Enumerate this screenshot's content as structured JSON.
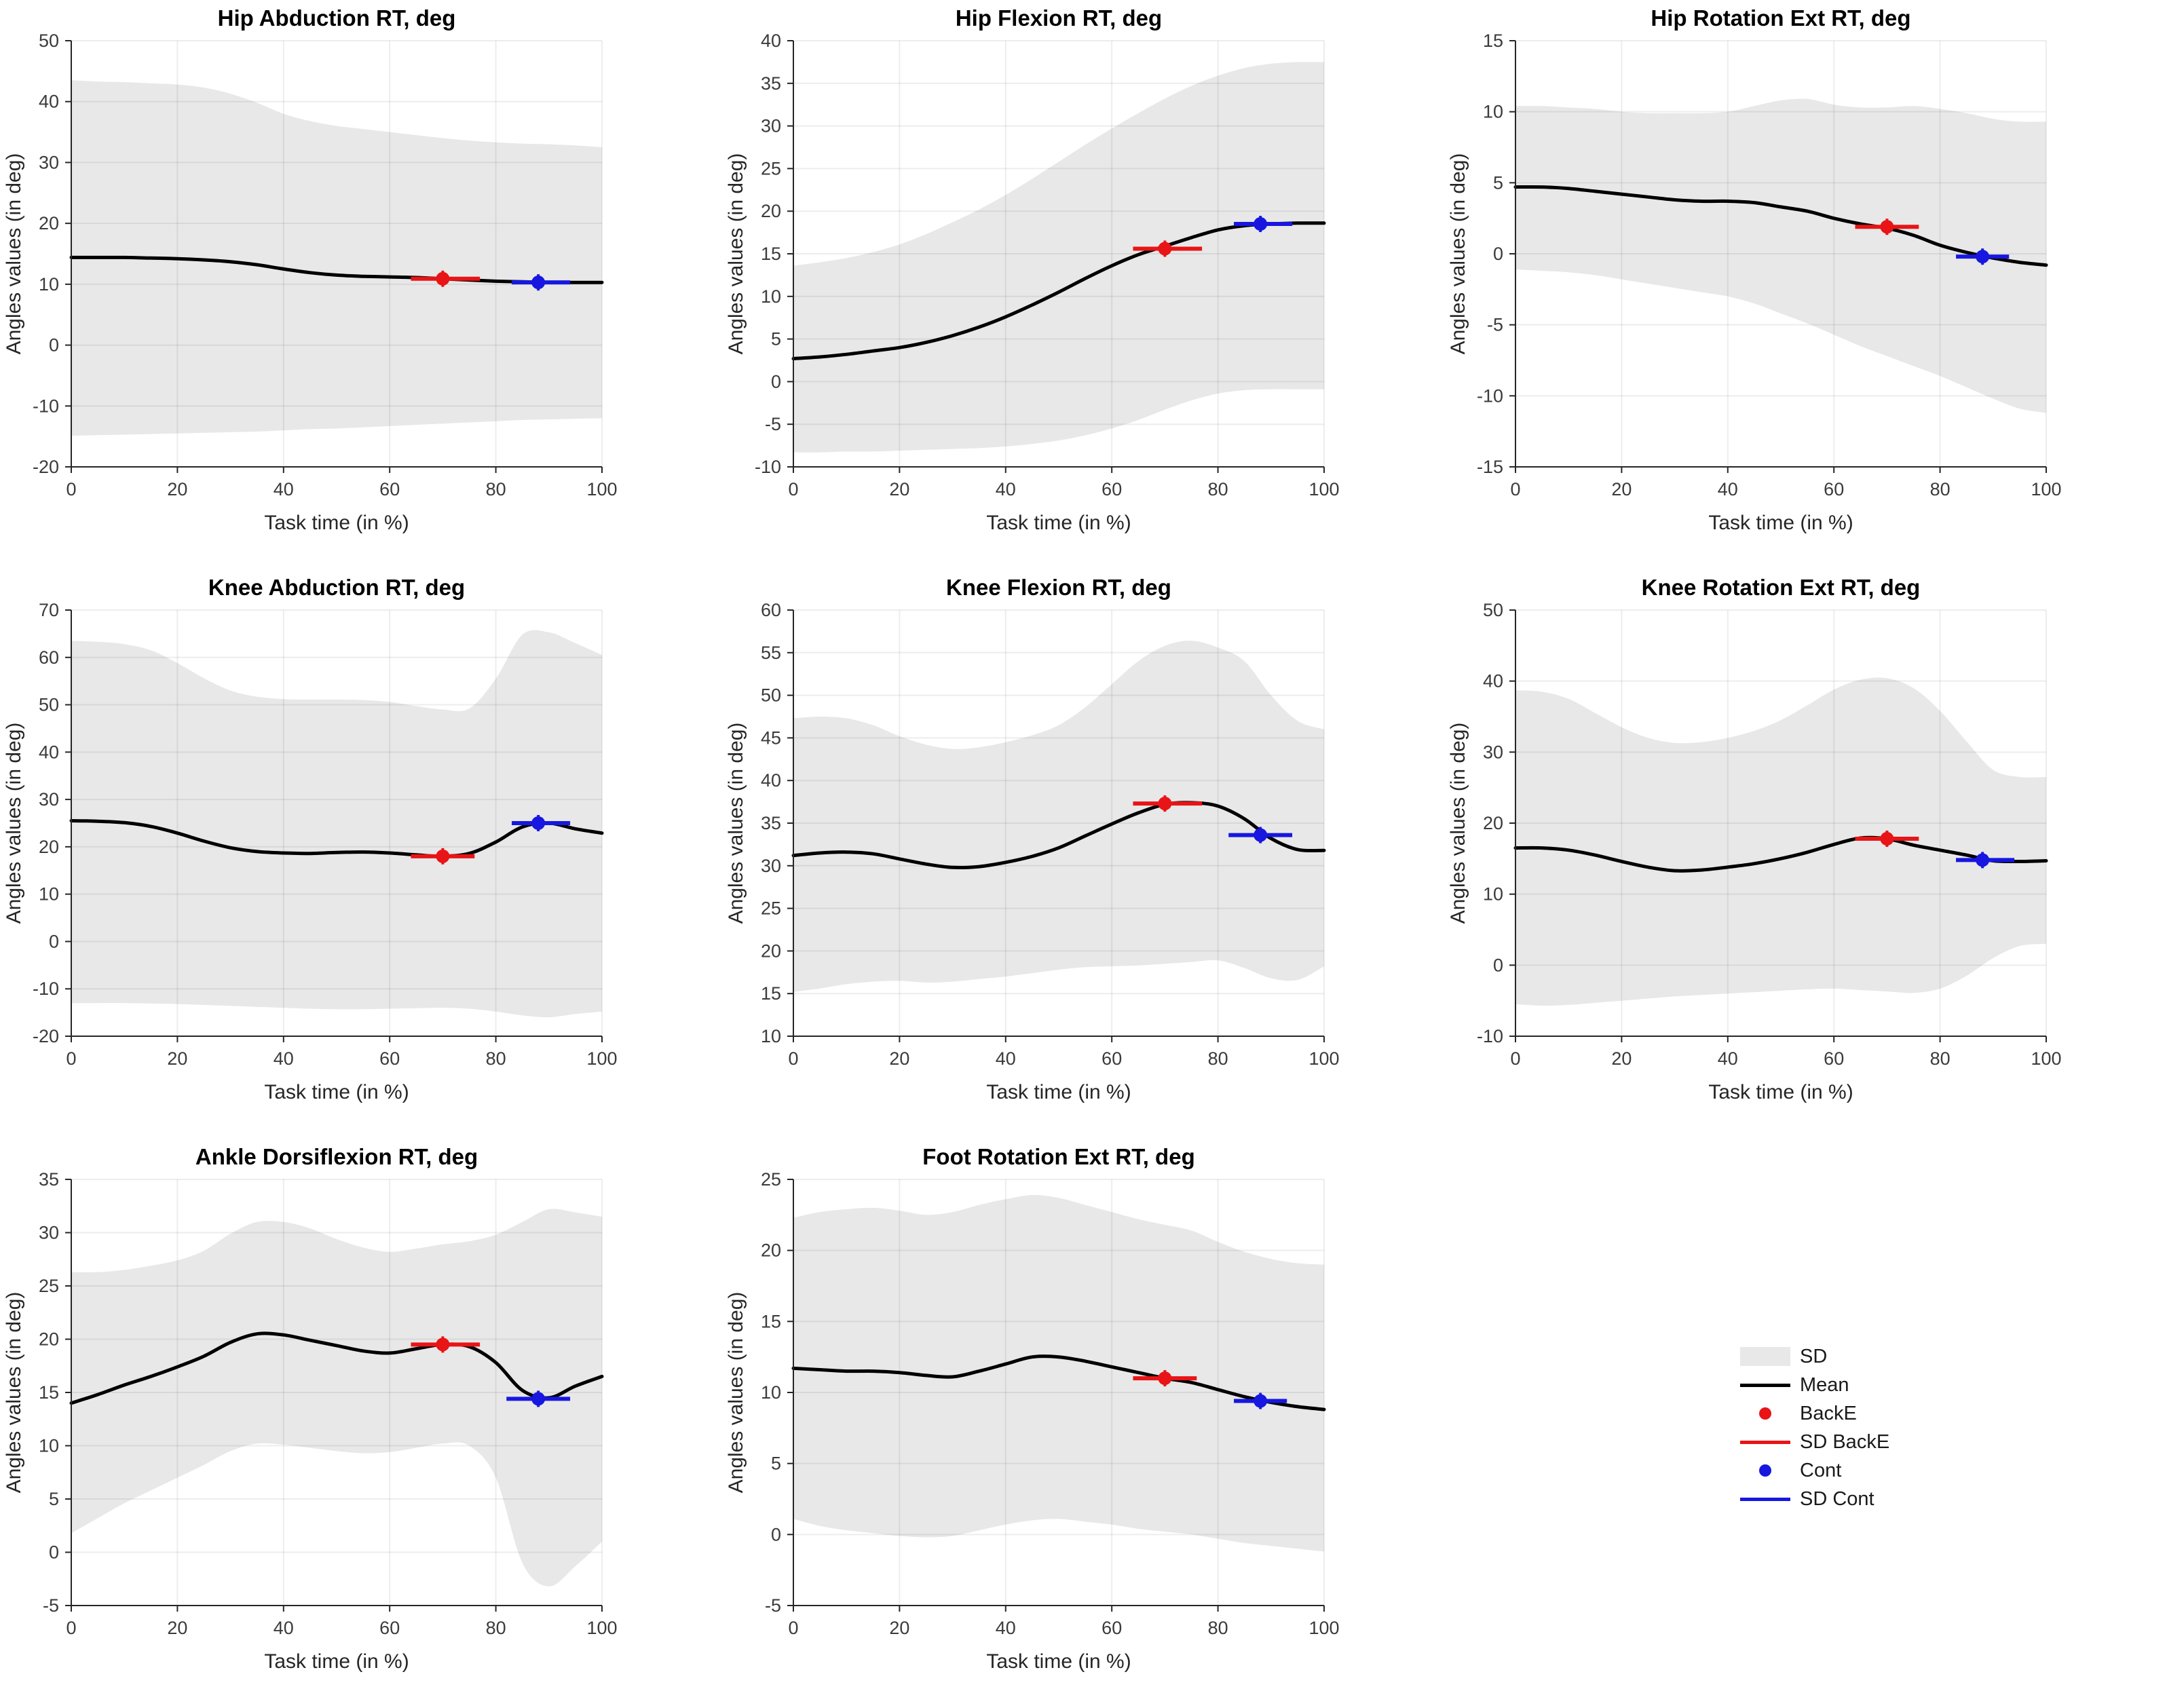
{
  "page": {
    "background": "#ffffff"
  },
  "colors": {
    "sd_band": "#e8e8e8",
    "mean": "#000000",
    "backe": "#e81416",
    "cont": "#1717e0",
    "grid": "rgba(0,0,0,0.07)",
    "axis": "#262626",
    "tick_label": "#3b3b3b",
    "title": "#000000"
  },
  "labels": {
    "xlabel": "Task time (in %)",
    "ylabel": "Angles values (in deg)"
  },
  "legend": {
    "items": [
      {
        "label": "SD",
        "type": "band"
      },
      {
        "label": "Mean",
        "type": "line-black"
      },
      {
        "label": "BackE",
        "type": "dot-red"
      },
      {
        "label": "SD BackE",
        "type": "line-red"
      },
      {
        "label": "Cont",
        "type": "dot-blue"
      },
      {
        "label": "SD Cont",
        "type": "line-blue"
      }
    ]
  },
  "chart_data": [
    {
      "type": "line",
      "title": "Hip Abduction RT, deg",
      "xlabel": "Task time (in %)",
      "ylabel": "Angles values (in deg)",
      "xlim": [
        0,
        100
      ],
      "xticks": [
        0,
        20,
        40,
        60,
        80,
        100
      ],
      "ylim": [
        -20,
        50
      ],
      "yticks": [
        -20,
        -10,
        0,
        10,
        20,
        30,
        40,
        50
      ],
      "x_start": 0,
      "x_step": 5,
      "mean": [
        14.4,
        14.4,
        14.4,
        14.3,
        14.2,
        14.0,
        13.7,
        13.2,
        12.5,
        11.9,
        11.5,
        11.3,
        11.2,
        11.1,
        10.9,
        10.7,
        10.5,
        10.4,
        10.3,
        10.3,
        10.3
      ],
      "sd_upper": [
        43.5,
        43.3,
        43.2,
        43.0,
        42.8,
        42.3,
        41.3,
        39.8,
        38.0,
        36.8,
        36.0,
        35.5,
        35.0,
        34.5,
        34.0,
        33.6,
        33.3,
        33.1,
        33.0,
        32.8,
        32.5
      ],
      "sd_lower": [
        -14.9,
        -14.8,
        -14.7,
        -14.6,
        -14.5,
        -14.4,
        -14.3,
        -14.2,
        -14.0,
        -13.8,
        -13.7,
        -13.5,
        -13.3,
        -13.1,
        -12.9,
        -12.7,
        -12.5,
        -12.3,
        -12.2,
        -12.1,
        -12.0
      ],
      "backe": {
        "x": 70,
        "y": 10.9,
        "x_lo": 64,
        "x_hi": 77
      },
      "cont": {
        "x": 88,
        "y": 10.3,
        "x_lo": 83,
        "x_hi": 94
      }
    },
    {
      "type": "line",
      "title": "Hip Flexion RT, deg",
      "xlabel": "Task time (in %)",
      "ylabel": "Angles values (in deg)",
      "xlim": [
        0,
        100
      ],
      "xticks": [
        0,
        20,
        40,
        60,
        80,
        100
      ],
      "ylim": [
        -10,
        40
      ],
      "yticks": [
        -10,
        -5,
        0,
        5,
        10,
        15,
        20,
        25,
        30,
        35,
        40
      ],
      "x_start": 0,
      "x_step": 5,
      "mean": [
        2.7,
        2.9,
        3.2,
        3.6,
        4.0,
        4.6,
        5.4,
        6.4,
        7.6,
        9.0,
        10.5,
        12.1,
        13.6,
        14.9,
        15.9,
        16.9,
        17.8,
        18.3,
        18.5,
        18.6,
        18.6
      ],
      "sd_upper": [
        13.6,
        14.0,
        14.5,
        15.2,
        16.1,
        17.3,
        18.7,
        20.2,
        21.9,
        23.8,
        25.8,
        27.8,
        29.7,
        31.5,
        33.2,
        34.7,
        35.9,
        36.8,
        37.3,
        37.5,
        37.5
      ],
      "sd_lower": [
        -8.3,
        -8.3,
        -8.2,
        -8.2,
        -8.1,
        -8.0,
        -7.9,
        -7.8,
        -7.6,
        -7.3,
        -6.9,
        -6.3,
        -5.5,
        -4.5,
        -3.3,
        -2.2,
        -1.4,
        -1.0,
        -0.9,
        -0.9,
        -0.9
      ],
      "backe": {
        "x": 70,
        "y": 15.6,
        "x_lo": 64,
        "x_hi": 77
      },
      "cont": {
        "x": 88,
        "y": 18.5,
        "x_lo": 83,
        "x_hi": 94
      }
    },
    {
      "type": "line",
      "title": "Hip Rotation Ext RT, deg",
      "xlabel": "Task time (in %)",
      "ylabel": "Angles values (in deg)",
      "xlim": [
        0,
        100
      ],
      "xticks": [
        0,
        20,
        40,
        60,
        80,
        100
      ],
      "ylim": [
        -15,
        15
      ],
      "yticks": [
        -15,
        -10,
        -5,
        0,
        5,
        10,
        15
      ],
      "x_start": 0,
      "x_step": 5,
      "mean": [
        4.7,
        4.7,
        4.6,
        4.4,
        4.2,
        4.0,
        3.8,
        3.7,
        3.7,
        3.6,
        3.3,
        3.0,
        2.5,
        2.1,
        1.8,
        1.3,
        0.6,
        0.1,
        -0.3,
        -0.6,
        -0.8
      ],
      "sd_upper": [
        10.4,
        10.4,
        10.3,
        10.2,
        10.0,
        9.9,
        9.9,
        9.9,
        10.0,
        10.4,
        10.8,
        10.9,
        10.5,
        10.3,
        10.3,
        10.4,
        10.2,
        9.9,
        9.5,
        9.3,
        9.3
      ],
      "sd_lower": [
        -1.1,
        -1.2,
        -1.3,
        -1.5,
        -1.8,
        -2.1,
        -2.4,
        -2.7,
        -3.0,
        -3.5,
        -4.2,
        -4.9,
        -5.7,
        -6.5,
        -7.2,
        -7.9,
        -8.6,
        -9.4,
        -10.2,
        -10.9,
        -11.2
      ],
      "backe": {
        "x": 70,
        "y": 1.9,
        "x_lo": 64,
        "x_hi": 76
      },
      "cont": {
        "x": 88,
        "y": -0.2,
        "x_lo": 83,
        "x_hi": 93
      }
    },
    {
      "type": "line",
      "title": "Knee Abduction RT, deg",
      "xlabel": "Task time (in %)",
      "ylabel": "Angles values (in deg)",
      "xlim": [
        0,
        100
      ],
      "xticks": [
        0,
        20,
        40,
        60,
        80,
        100
      ],
      "ylim": [
        -20,
        70
      ],
      "yticks": [
        -20,
        -10,
        0,
        10,
        20,
        30,
        40,
        50,
        60,
        70
      ],
      "x_start": 0,
      "x_step": 5,
      "mean": [
        25.5,
        25.4,
        25.1,
        24.3,
        22.9,
        21.2,
        19.8,
        19.0,
        18.7,
        18.6,
        18.8,
        18.9,
        18.7,
        18.3,
        18.0,
        18.6,
        21.0,
        24.2,
        25.0,
        23.8,
        22.9
      ],
      "sd_upper": [
        63.5,
        63.3,
        62.8,
        61.5,
        58.8,
        55.6,
        53.0,
        51.7,
        51.2,
        51.1,
        51.1,
        51.0,
        50.6,
        49.7,
        49.0,
        49.2,
        55.5,
        64.8,
        65.3,
        63.0,
        60.5
      ],
      "sd_lower": [
        -13.0,
        -13.0,
        -13.0,
        -13.1,
        -13.2,
        -13.4,
        -13.6,
        -13.8,
        -14.0,
        -14.2,
        -14.3,
        -14.3,
        -14.2,
        -14.1,
        -14.0,
        -14.2,
        -14.8,
        -15.6,
        -16.0,
        -15.3,
        -14.8
      ],
      "backe": {
        "x": 70,
        "y": 18.0,
        "x_lo": 64,
        "x_hi": 76
      },
      "cont": {
        "x": 88,
        "y": 25.0,
        "x_lo": 83,
        "x_hi": 94
      }
    },
    {
      "type": "line",
      "title": "Knee Flexion RT, deg",
      "xlabel": "Task time (in %)",
      "ylabel": "Angles values (in deg)",
      "xlim": [
        0,
        100
      ],
      "xticks": [
        0,
        20,
        40,
        60,
        80,
        100
      ],
      "ylim": [
        10,
        60
      ],
      "yticks": [
        10,
        15,
        20,
        25,
        30,
        35,
        40,
        45,
        50,
        55,
        60
      ],
      "x_start": 0,
      "x_step": 5,
      "mean": [
        31.2,
        31.5,
        31.6,
        31.4,
        30.8,
        30.2,
        29.8,
        29.9,
        30.4,
        31.1,
        32.1,
        33.5,
        34.9,
        36.2,
        37.2,
        37.4,
        37.0,
        35.5,
        33.2,
        31.9,
        31.8
      ],
      "sd_upper": [
        47.3,
        47.5,
        47.3,
        46.5,
        45.2,
        44.2,
        43.7,
        43.9,
        44.5,
        45.3,
        46.5,
        48.6,
        51.3,
        54.0,
        55.8,
        56.4,
        55.6,
        54.0,
        50.0,
        47.0,
        46.0
      ],
      "sd_lower": [
        15.2,
        15.6,
        16.1,
        16.4,
        16.5,
        16.3,
        16.4,
        16.7,
        17.0,
        17.4,
        17.8,
        18.1,
        18.2,
        18.3,
        18.5,
        18.7,
        18.9,
        18.0,
        16.8,
        16.6,
        18.2
      ],
      "backe": {
        "x": 70,
        "y": 37.3,
        "x_lo": 64,
        "x_hi": 77
      },
      "cont": {
        "x": 88,
        "y": 33.6,
        "x_lo": 82,
        "x_hi": 94
      }
    },
    {
      "type": "line",
      "title": "Knee Rotation Ext RT, deg",
      "xlabel": "Task time (in %)",
      "ylabel": "Angles values (in deg)",
      "xlim": [
        0,
        100
      ],
      "xticks": [
        0,
        20,
        40,
        60,
        80,
        100
      ],
      "ylim": [
        -10,
        50
      ],
      "yticks": [
        -10,
        0,
        10,
        20,
        30,
        40,
        50
      ],
      "x_start": 0,
      "x_step": 5,
      "mean": [
        16.5,
        16.5,
        16.2,
        15.5,
        14.6,
        13.8,
        13.3,
        13.4,
        13.8,
        14.3,
        15.0,
        15.9,
        17.0,
        17.9,
        17.8,
        16.9,
        16.2,
        15.5,
        14.7,
        14.6,
        14.7
      ],
      "sd_upper": [
        38.7,
        38.5,
        37.5,
        35.5,
        33.5,
        32.0,
        31.3,
        31.4,
        32.0,
        33.0,
        34.5,
        36.6,
        38.8,
        40.2,
        40.4,
        39.0,
        35.8,
        31.5,
        27.5,
        26.5,
        26.5
      ],
      "sd_lower": [
        -5.5,
        -5.7,
        -5.6,
        -5.3,
        -5.0,
        -4.7,
        -4.4,
        -4.2,
        -4.0,
        -3.8,
        -3.6,
        -3.4,
        -3.3,
        -3.5,
        -3.7,
        -3.9,
        -3.3,
        -1.5,
        1.0,
        2.7,
        3.0
      ],
      "backe": {
        "x": 70,
        "y": 17.8,
        "x_lo": 64,
        "x_hi": 76
      },
      "cont": {
        "x": 88,
        "y": 14.8,
        "x_lo": 83,
        "x_hi": 94
      }
    },
    {
      "type": "line",
      "title": "Ankle Dorsiflexion RT, deg",
      "xlabel": "Task time (in %)",
      "ylabel": "Angles values (in deg)",
      "xlim": [
        0,
        100
      ],
      "xticks": [
        0,
        20,
        40,
        60,
        80,
        100
      ],
      "ylim": [
        -5,
        35
      ],
      "yticks": [
        -5,
        0,
        5,
        10,
        15,
        20,
        25,
        30,
        35
      ],
      "x_start": 0,
      "x_step": 5,
      "mean": [
        14.0,
        14.8,
        15.7,
        16.5,
        17.4,
        18.4,
        19.7,
        20.5,
        20.4,
        19.9,
        19.4,
        18.9,
        18.7,
        19.1,
        19.5,
        19.3,
        17.8,
        15.2,
        14.5,
        15.6,
        16.5
      ],
      "sd_upper": [
        26.3,
        26.3,
        26.5,
        26.9,
        27.4,
        28.3,
        29.9,
        31.0,
        31.0,
        30.4,
        29.4,
        28.6,
        28.2,
        28.5,
        28.9,
        29.2,
        29.8,
        31.0,
        32.2,
        31.9,
        31.5
      ],
      "sd_lower": [
        1.8,
        3.2,
        4.6,
        5.8,
        7.0,
        8.2,
        9.5,
        10.2,
        10.1,
        9.8,
        9.5,
        9.3,
        9.4,
        9.8,
        10.2,
        10.0,
        7.0,
        -1.0,
        -3.2,
        -1.3,
        1.0
      ],
      "backe": {
        "x": 70,
        "y": 19.5,
        "x_lo": 64,
        "x_hi": 77
      },
      "cont": {
        "x": 88,
        "y": 14.4,
        "x_lo": 82,
        "x_hi": 94
      }
    },
    {
      "type": "line",
      "title": "Foot Rotation Ext RT, deg",
      "xlabel": "Task time (in %)",
      "ylabel": "Angles values (in deg)",
      "xlim": [
        0,
        100
      ],
      "xticks": [
        0,
        20,
        40,
        60,
        80,
        100
      ],
      "ylim": [
        -5,
        25
      ],
      "yticks": [
        -5,
        0,
        5,
        10,
        15,
        20,
        25
      ],
      "x_start": 0,
      "x_step": 5,
      "mean": [
        11.7,
        11.6,
        11.5,
        11.5,
        11.4,
        11.2,
        11.1,
        11.5,
        12.0,
        12.5,
        12.5,
        12.2,
        11.8,
        11.4,
        11.0,
        10.7,
        10.2,
        9.7,
        9.3,
        9.0,
        8.8
      ],
      "sd_upper": [
        22.3,
        22.7,
        22.9,
        23.0,
        22.8,
        22.5,
        22.7,
        23.2,
        23.6,
        23.9,
        23.7,
        23.2,
        22.7,
        22.2,
        21.8,
        21.4,
        20.6,
        19.9,
        19.4,
        19.1,
        19.0
      ],
      "sd_lower": [
        1.1,
        0.6,
        0.3,
        0.1,
        -0.1,
        -0.2,
        -0.1,
        0.3,
        0.7,
        1.0,
        1.1,
        0.9,
        0.7,
        0.4,
        0.2,
        0.0,
        -0.3,
        -0.6,
        -0.8,
        -1.0,
        -1.2
      ],
      "backe": {
        "x": 70,
        "y": 11.0,
        "x_lo": 64,
        "x_hi": 76
      },
      "cont": {
        "x": 88,
        "y": 9.4,
        "x_lo": 83,
        "x_hi": 93
      }
    }
  ]
}
